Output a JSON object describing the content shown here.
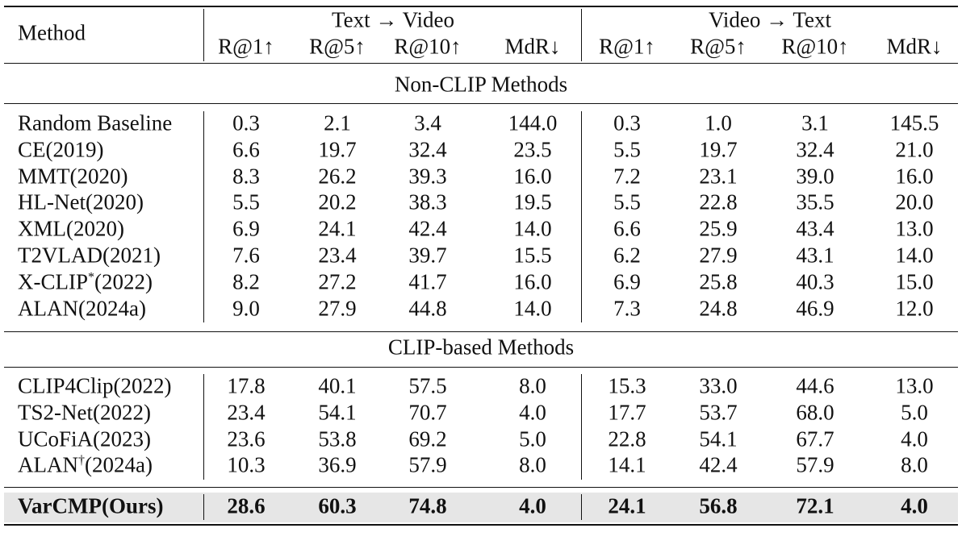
{
  "table": {
    "header": {
      "method": "Method",
      "groups": [
        "Text → Video",
        "Video → Text"
      ],
      "columns": [
        "R@1↑",
        "R@5↑",
        "R@10↑",
        "MdR↓",
        "R@1↑",
        "R@5↑",
        "R@10↑",
        "MdR↓"
      ]
    },
    "sections": [
      {
        "title": "Non-CLIP Methods",
        "rows": [
          {
            "method": "Random Baseline",
            "values": [
              "0.3",
              "2.1",
              "3.4",
              "144.0",
              "0.3",
              "1.0",
              "3.1",
              "145.5"
            ]
          },
          {
            "method": "CE(2019)",
            "values": [
              "6.6",
              "19.7",
              "32.4",
              "23.5",
              "5.5",
              "19.7",
              "32.4",
              "21.0"
            ]
          },
          {
            "method": "MMT(2020)",
            "values": [
              "8.3",
              "26.2",
              "39.3",
              "16.0",
              "7.2",
              "23.1",
              "39.0",
              "16.0"
            ]
          },
          {
            "method": "HL-Net(2020)",
            "values": [
              "5.5",
              "20.2",
              "38.3",
              "19.5",
              "5.5",
              "22.8",
              "35.5",
              "20.0"
            ]
          },
          {
            "method": "XML(2020)",
            "values": [
              "6.9",
              "24.1",
              "42.4",
              "14.0",
              "6.6",
              "25.9",
              "43.4",
              "13.0"
            ]
          },
          {
            "method": "T2VLAD(2021)",
            "values": [
              "7.6",
              "23.4",
              "39.7",
              "15.5",
              "6.2",
              "27.9",
              "43.1",
              "14.0"
            ]
          },
          {
            "method": "X-CLIP",
            "sup": "*",
            "suffix": "(2022)",
            "values": [
              "8.2",
              "27.2",
              "41.7",
              "16.0",
              "6.9",
              "25.8",
              "40.3",
              "15.0"
            ]
          },
          {
            "method": "ALAN(2024a)",
            "values": [
              "9.0",
              "27.9",
              "44.8",
              "14.0",
              "7.3",
              "24.8",
              "46.9",
              "12.0"
            ]
          }
        ]
      },
      {
        "title": "CLIP-based Methods",
        "rows": [
          {
            "method": "CLIP4Clip(2022)",
            "values": [
              "17.8",
              "40.1",
              "57.5",
              "8.0",
              "15.3",
              "33.0",
              "44.6",
              "13.0"
            ]
          },
          {
            "method": "TS2-Net(2022)",
            "values": [
              "23.4",
              "54.1",
              "70.7",
              "4.0",
              "17.7",
              "53.7",
              "68.0",
              "5.0"
            ]
          },
          {
            "method": "UCoFiA(2023)",
            "values": [
              "23.6",
              "53.8",
              "69.2",
              "5.0",
              "22.8",
              "54.1",
              "67.7",
              "4.0"
            ]
          },
          {
            "method": "ALAN",
            "sup": "†",
            "suffix": "(2024a)",
            "values": [
              "10.3",
              "36.9",
              "57.9",
              "8.0",
              "14.1",
              "42.4",
              "57.9",
              "8.0"
            ]
          }
        ]
      }
    ],
    "ours": {
      "method": "VarCMP(Ours)",
      "values": [
        "28.6",
        "60.3",
        "74.8",
        "4.0",
        "24.1",
        "56.8",
        "72.1",
        "4.0"
      ]
    }
  }
}
